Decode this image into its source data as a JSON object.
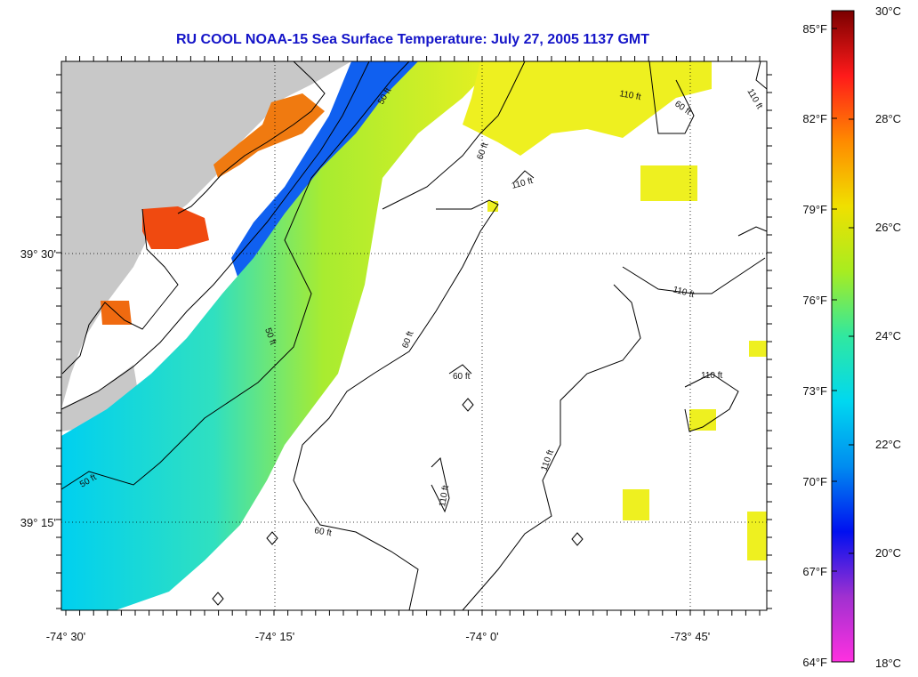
{
  "title": "RU COOL  NOAA-15  Sea Surface Temperature:  July 27, 2005 1137 GMT",
  "map": {
    "lon_labels": [
      "-74° 30'",
      "-74° 15'",
      "-74° 0'",
      "-73° 45'"
    ],
    "lat_labels": [
      "39° 30'",
      "39° 15'"
    ],
    "contour_labels": [
      "50 ft",
      "60 ft",
      "110 ft"
    ]
  },
  "colorbar": {
    "fahrenheit": [
      "85°F",
      "82°F",
      "79°F",
      "76°F",
      "73°F",
      "70°F",
      "67°F",
      "64°F"
    ],
    "celsius": [
      "30°C",
      "28°C",
      "26°C",
      "24°C",
      "22°C",
      "20°C",
      "18°C"
    ],
    "colors": [
      "#7a0000",
      "#ff1a1a",
      "#ff8a00",
      "#f0e000",
      "#a8ec20",
      "#30e8a0",
      "#00d8f0",
      "#008cf0",
      "#0010f0",
      "#a030d0",
      "#ff30e0"
    ]
  }
}
